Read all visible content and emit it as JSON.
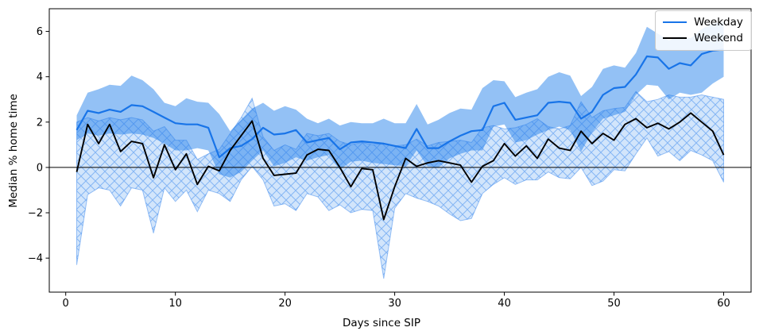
{
  "figure": {
    "kind": "line chart with confidence bands",
    "background": "#ffffff"
  },
  "chart_data": {
    "type": "line",
    "title": "",
    "xlabel": "Days since SIP",
    "ylabel": "Median % home time",
    "xlim": [
      -1.5,
      62.5
    ],
    "ylim": [
      -5.5,
      7.0
    ],
    "grid": false,
    "zero_line": true,
    "xticks": [
      0,
      10,
      20,
      30,
      40,
      50,
      60
    ],
    "xticklabels": [
      "0",
      "10",
      "20",
      "30",
      "40",
      "50",
      "60"
    ],
    "yticks": [
      -4,
      -2,
      0,
      2,
      4,
      6
    ],
    "yticklabels": [
      "−4",
      "−2",
      "0",
      "2",
      "4",
      "6"
    ],
    "hatch_color": "rgba(40,125,235,0.45)",
    "legend": {
      "position": "upper right",
      "entries": [
        {
          "label": "Weekday"
        },
        {
          "label": "Weekend"
        }
      ]
    },
    "x": [
      1,
      2,
      3,
      4,
      5,
      6,
      7,
      8,
      9,
      10,
      11,
      12,
      13,
      14,
      15,
      16,
      17,
      18,
      19,
      20,
      21,
      22,
      23,
      24,
      25,
      26,
      27,
      28,
      29,
      30,
      31,
      32,
      33,
      34,
      35,
      36,
      37,
      38,
      39,
      40,
      41,
      42,
      43,
      44,
      45,
      46,
      47,
      48,
      49,
      50,
      51,
      52,
      53,
      54,
      55,
      56,
      57,
      58,
      59,
      60
    ],
    "series": [
      {
        "name": "Weekday",
        "color": "#1874e8",
        "band_color": "rgba(30,125,235,0.48)",
        "band_style": "solid",
        "values": [
          1.65,
          2.5,
          2.4,
          2.55,
          2.45,
          2.75,
          2.7,
          2.45,
          2.2,
          1.95,
          1.9,
          1.9,
          1.75,
          0.45,
          0.85,
          0.95,
          1.25,
          1.75,
          1.45,
          1.5,
          1.65,
          1.1,
          1.2,
          1.3,
          0.8,
          1.1,
          1.15,
          1.1,
          1.05,
          0.95,
          0.85,
          1.7,
          0.85,
          0.85,
          1.15,
          1.4,
          1.6,
          1.65,
          2.7,
          2.85,
          2.1,
          2.2,
          2.3,
          2.85,
          2.9,
          2.85,
          2.15,
          2.45,
          3.2,
          3.5,
          3.55,
          4.1,
          4.9,
          4.85,
          4.35,
          4.6,
          4.5,
          5.0,
          5.15,
          5.2
        ],
        "band_upper": [
          2.3,
          3.3,
          3.45,
          3.65,
          3.6,
          4.05,
          3.85,
          3.45,
          2.85,
          2.7,
          3.05,
          2.9,
          2.85,
          2.35,
          1.6,
          2.1,
          2.6,
          2.85,
          2.5,
          2.7,
          2.55,
          2.15,
          1.95,
          2.15,
          1.85,
          2.0,
          1.95,
          1.95,
          2.15,
          1.95,
          1.95,
          2.8,
          1.9,
          2.1,
          2.4,
          2.6,
          2.55,
          3.5,
          3.85,
          3.8,
          3.1,
          3.3,
          3.45,
          4.0,
          4.2,
          4.05,
          3.15,
          3.55,
          4.35,
          4.5,
          4.4,
          5.05,
          6.2,
          5.9,
          5.6,
          5.8,
          5.7,
          6.1,
          6.35,
          6.4
        ],
        "band_lower": [
          1.2,
          1.5,
          1.4,
          1.5,
          1.45,
          1.5,
          1.45,
          1.3,
          1.05,
          0.75,
          0.75,
          0.85,
          0.75,
          -0.3,
          -0.45,
          -0.2,
          0.3,
          0.75,
          0.05,
          0.2,
          0.45,
          0.3,
          0.45,
          0.55,
          -0.1,
          0.25,
          0.3,
          0.2,
          0.15,
          0.1,
          0.05,
          0.75,
          0.05,
          0.0,
          0.4,
          0.6,
          0.75,
          0.75,
          1.8,
          1.9,
          1.1,
          1.2,
          1.45,
          1.65,
          1.8,
          1.65,
          0.7,
          1.55,
          2.15,
          2.3,
          2.45,
          3.2,
          3.65,
          3.6,
          3.0,
          3.3,
          3.2,
          3.3,
          3.7,
          4.0
        ]
      },
      {
        "name": "Weekend",
        "color": "#000000",
        "band_color": "rgba(30,125,235,0.20)",
        "band_style": "hatched",
        "values": [
          -0.2,
          1.9,
          1.05,
          1.9,
          0.7,
          1.15,
          1.05,
          -0.45,
          1.0,
          -0.1,
          0.6,
          -0.75,
          0.05,
          -0.15,
          0.75,
          1.4,
          2.05,
          0.4,
          -0.35,
          -0.3,
          -0.25,
          0.55,
          0.8,
          0.75,
          0.0,
          -0.85,
          -0.05,
          -0.1,
          -2.3,
          -0.85,
          0.4,
          0.05,
          0.2,
          0.3,
          0.2,
          0.1,
          -0.65,
          0.05,
          0.3,
          1.05,
          0.5,
          0.95,
          0.4,
          1.25,
          0.85,
          0.75,
          1.6,
          1.05,
          1.5,
          1.2,
          1.9,
          2.15,
          1.75,
          1.95,
          1.7,
          2.0,
          2.4,
          2.0,
          1.6,
          0.55
        ],
        "band_upper": [
          2.0,
          2.2,
          2.05,
          2.2,
          2.1,
          2.2,
          2.1,
          1.6,
          1.8,
          1.2,
          1.2,
          0.35,
          0.6,
          0.8,
          1.5,
          2.2,
          3.05,
          1.35,
          0.75,
          1.0,
          0.8,
          1.5,
          1.4,
          1.5,
          1.15,
          1.0,
          1.1,
          1.0,
          1.05,
          0.95,
          1.0,
          1.25,
          0.95,
          1.1,
          1.15,
          1.2,
          1.1,
          1.75,
          1.85,
          1.7,
          1.75,
          1.9,
          2.15,
          1.8,
          1.7,
          1.85,
          2.9,
          2.2,
          2.5,
          2.6,
          2.65,
          3.35,
          2.9,
          3.0,
          3.2,
          3.1,
          3.1,
          3.2,
          3.1,
          3.0
        ],
        "band_lower": [
          -4.3,
          -1.2,
          -0.9,
          -1.0,
          -1.7,
          -0.9,
          -1.0,
          -2.9,
          -0.9,
          -1.5,
          -1.0,
          -1.95,
          -1.0,
          -1.15,
          -1.5,
          -0.55,
          0.05,
          -0.55,
          -1.7,
          -1.6,
          -1.9,
          -1.15,
          -1.3,
          -1.9,
          -1.65,
          -2.0,
          -1.85,
          -1.9,
          -4.9,
          -1.8,
          -1.15,
          -1.35,
          -1.5,
          -1.7,
          -2.05,
          -2.35,
          -2.25,
          -1.15,
          -0.75,
          -0.45,
          -0.75,
          -0.55,
          -0.55,
          -0.2,
          -0.45,
          -0.5,
          0.0,
          -0.8,
          -0.6,
          -0.1,
          -0.15,
          0.6,
          1.3,
          0.5,
          0.7,
          0.3,
          0.75,
          0.55,
          0.3,
          -0.65
        ]
      }
    ]
  }
}
